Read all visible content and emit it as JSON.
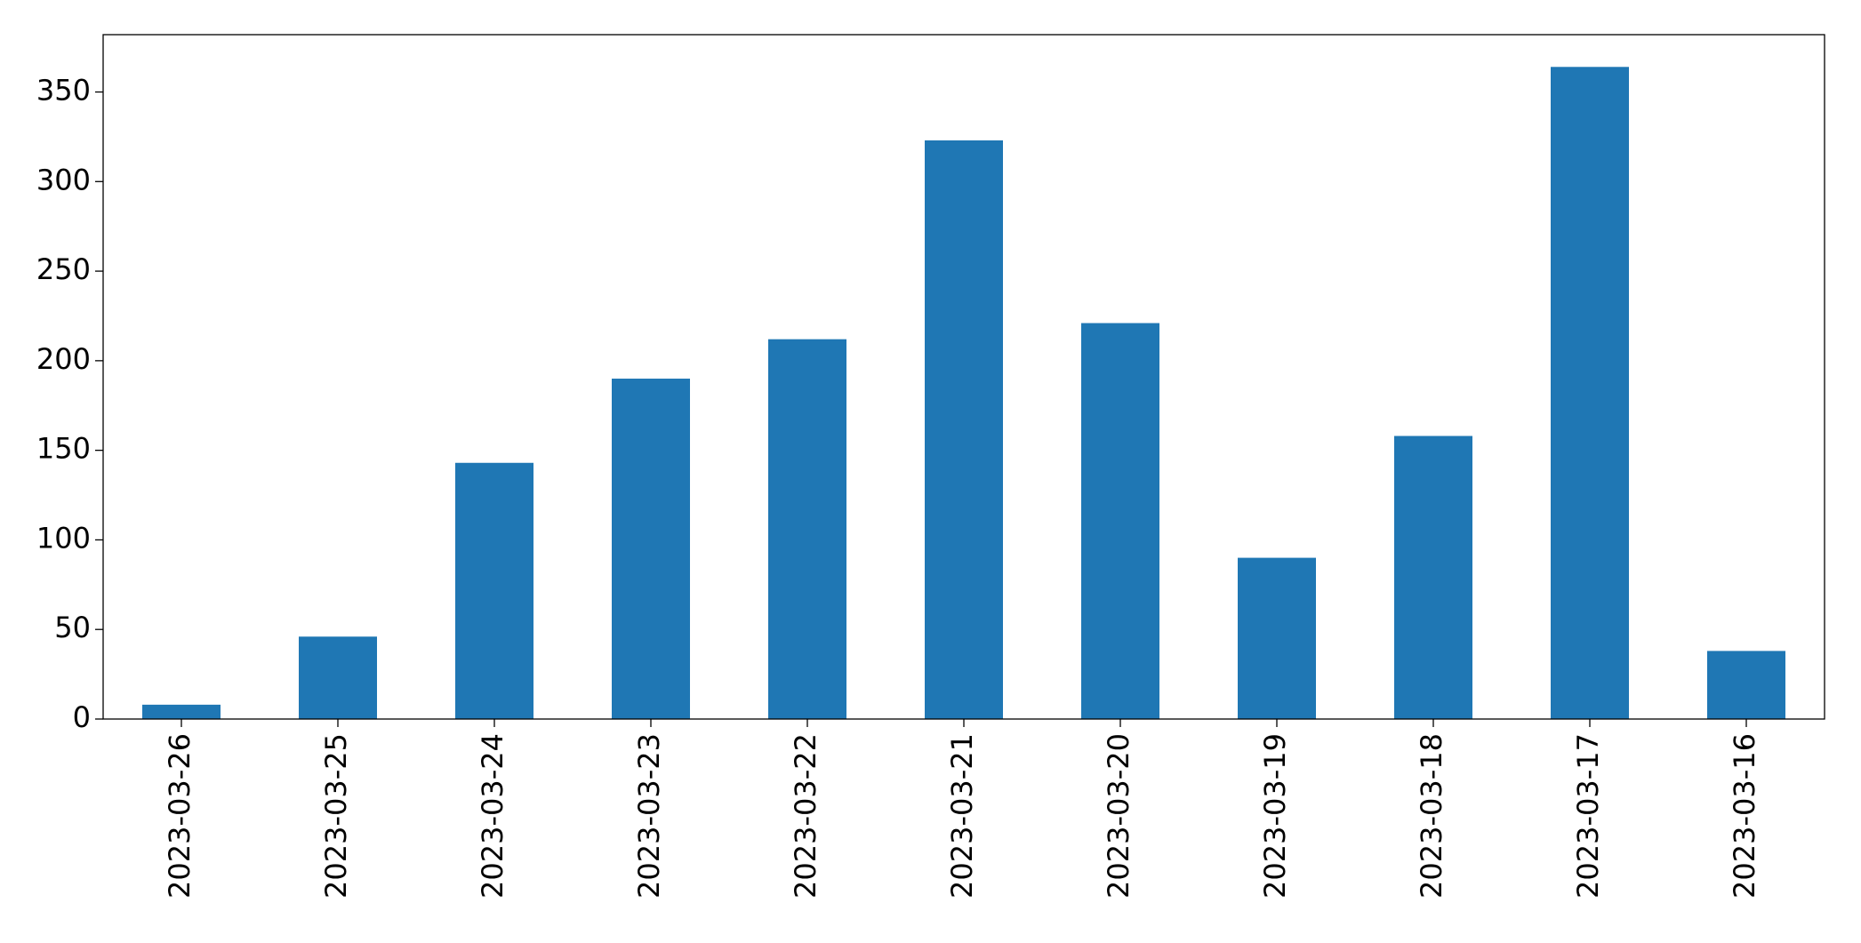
{
  "chart_data": {
    "type": "bar",
    "categories": [
      "2023-03-26",
      "2023-03-25",
      "2023-03-24",
      "2023-03-23",
      "2023-03-22",
      "2023-03-21",
      "2023-03-20",
      "2023-03-19",
      "2023-03-18",
      "2023-03-17",
      "2023-03-16"
    ],
    "values": [
      8,
      46,
      143,
      190,
      212,
      323,
      221,
      90,
      158,
      364,
      38
    ],
    "color": "#1f77b4",
    "ylim": [
      0,
      382
    ],
    "yticks": [
      0,
      50,
      100,
      150,
      200,
      250,
      300,
      350
    ],
    "grid": false
  }
}
